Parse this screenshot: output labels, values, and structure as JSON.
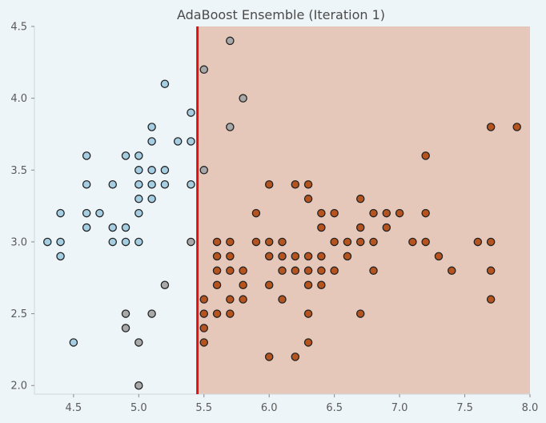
{
  "chart_data": {
    "type": "scatter",
    "title": "AdaBoost Ensemble (Iteration 1)",
    "xlabel": "",
    "ylabel": "",
    "xlim": [
      4.2,
      8.0
    ],
    "ylim": [
      1.94,
      4.5
    ],
    "xticks": [
      "4.5",
      "5.0",
      "5.5",
      "6.0",
      "6.5",
      "7.0",
      "7.5",
      "8.0"
    ],
    "yticks": [
      "2.0",
      "2.5",
      "3.0",
      "3.5",
      "4.0",
      "4.5"
    ],
    "grid": false,
    "decision_boundary_x": 5.45,
    "regions": [
      {
        "x_from": 4.2,
        "x_to": 5.45,
        "color": "#eef5f9"
      },
      {
        "x_from": 5.45,
        "x_to": 8.0,
        "color": "#e6c8bb"
      }
    ],
    "colors": {
      "class_blue": "#a6cee3",
      "class_gray": "#a9a9a9",
      "class_orange": "#b5541f",
      "boundary": "#dd1111",
      "point_edge": "#222222"
    },
    "series": [
      {
        "class": "blue",
        "points": [
          [
            4.3,
            3.0
          ],
          [
            4.4,
            3.0
          ],
          [
            4.4,
            3.2
          ],
          [
            4.4,
            2.9
          ],
          [
            4.5,
            2.3
          ],
          [
            4.6,
            3.6
          ],
          [
            4.6,
            3.4
          ],
          [
            4.6,
            3.2
          ],
          [
            4.6,
            3.1
          ],
          [
            4.7,
            3.2
          ],
          [
            4.8,
            3.4
          ],
          [
            4.8,
            3.1
          ],
          [
            4.8,
            3.0
          ],
          [
            4.9,
            3.6
          ],
          [
            4.9,
            3.1
          ],
          [
            4.9,
            3.0
          ],
          [
            5.0,
            3.6
          ],
          [
            5.0,
            3.5
          ],
          [
            5.0,
            3.4
          ],
          [
            5.0,
            3.3
          ],
          [
            5.0,
            3.2
          ],
          [
            5.0,
            3.0
          ],
          [
            5.1,
            3.8
          ],
          [
            5.1,
            3.7
          ],
          [
            5.1,
            3.5
          ],
          [
            5.1,
            3.4
          ],
          [
            5.1,
            3.3
          ],
          [
            5.2,
            4.1
          ],
          [
            5.2,
            3.5
          ],
          [
            5.2,
            3.4
          ],
          [
            5.3,
            3.7
          ],
          [
            5.4,
            3.9
          ],
          [
            5.4,
            3.7
          ],
          [
            5.4,
            3.4
          ]
        ]
      },
      {
        "class": "gray",
        "points": [
          [
            4.9,
            2.5
          ],
          [
            4.9,
            2.4
          ],
          [
            5.0,
            2.3
          ],
          [
            5.0,
            2.0
          ],
          [
            5.1,
            2.5
          ],
          [
            5.2,
            2.7
          ],
          [
            5.4,
            3.0
          ],
          [
            5.5,
            4.2
          ],
          [
            5.5,
            3.5
          ],
          [
            5.7,
            4.4
          ],
          [
            5.7,
            3.8
          ],
          [
            5.8,
            4.0
          ]
        ]
      },
      {
        "class": "orange",
        "points": [
          [
            5.5,
            2.6
          ],
          [
            5.5,
            2.5
          ],
          [
            5.5,
            2.4
          ],
          [
            5.5,
            2.3
          ],
          [
            5.6,
            3.0
          ],
          [
            5.6,
            2.9
          ],
          [
            5.6,
            2.8
          ],
          [
            5.6,
            2.7
          ],
          [
            5.6,
            2.5
          ],
          [
            5.7,
            3.0
          ],
          [
            5.7,
            2.9
          ],
          [
            5.7,
            2.8
          ],
          [
            5.7,
            2.6
          ],
          [
            5.7,
            2.5
          ],
          [
            5.8,
            2.8
          ],
          [
            5.8,
            2.7
          ],
          [
            5.8,
            2.6
          ],
          [
            5.9,
            3.2
          ],
          [
            5.9,
            3.0
          ],
          [
            6.0,
            3.4
          ],
          [
            6.0,
            3.0
          ],
          [
            6.0,
            2.9
          ],
          [
            6.0,
            2.7
          ],
          [
            6.0,
            2.2
          ],
          [
            6.1,
            3.0
          ],
          [
            6.1,
            2.9
          ],
          [
            6.1,
            2.8
          ],
          [
            6.1,
            2.6
          ],
          [
            6.2,
            3.4
          ],
          [
            6.2,
            2.9
          ],
          [
            6.2,
            2.8
          ],
          [
            6.2,
            2.2
          ],
          [
            6.3,
            3.4
          ],
          [
            6.3,
            3.3
          ],
          [
            6.3,
            2.9
          ],
          [
            6.3,
            2.8
          ],
          [
            6.3,
            2.7
          ],
          [
            6.3,
            2.5
          ],
          [
            6.3,
            2.3
          ],
          [
            6.4,
            3.2
          ],
          [
            6.4,
            3.1
          ],
          [
            6.4,
            2.9
          ],
          [
            6.4,
            2.8
          ],
          [
            6.4,
            2.7
          ],
          [
            6.5,
            3.2
          ],
          [
            6.5,
            3.0
          ],
          [
            6.5,
            2.8
          ],
          [
            6.6,
            3.0
          ],
          [
            6.6,
            2.9
          ],
          [
            6.7,
            3.3
          ],
          [
            6.7,
            3.1
          ],
          [
            6.7,
            3.0
          ],
          [
            6.7,
            2.5
          ],
          [
            6.8,
            3.2
          ],
          [
            6.8,
            3.0
          ],
          [
            6.8,
            2.8
          ],
          [
            6.9,
            3.2
          ],
          [
            6.9,
            3.1
          ],
          [
            7.0,
            3.2
          ],
          [
            7.1,
            3.0
          ],
          [
            7.2,
            3.6
          ],
          [
            7.2,
            3.2
          ],
          [
            7.2,
            3.0
          ],
          [
            7.3,
            2.9
          ],
          [
            7.4,
            2.8
          ],
          [
            7.6,
            3.0
          ],
          [
            7.7,
            3.8
          ],
          [
            7.7,
            3.0
          ],
          [
            7.7,
            2.8
          ],
          [
            7.7,
            2.6
          ],
          [
            7.9,
            3.8
          ]
        ]
      }
    ]
  }
}
